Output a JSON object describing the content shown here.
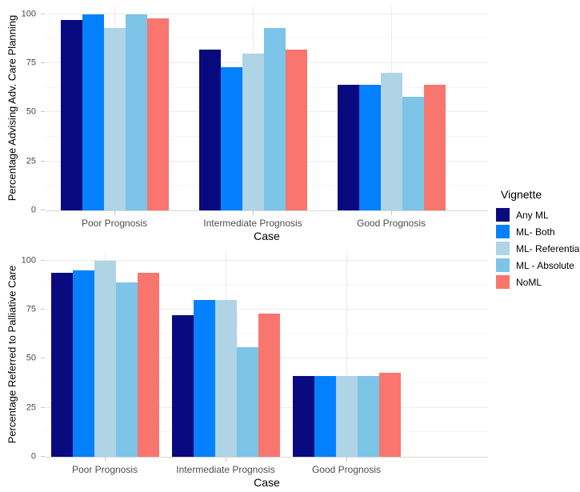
{
  "legend": {
    "title": "Vignette",
    "position": "right-center"
  },
  "colors": {
    "any_ml": "#0A0A80",
    "ml_both": "#0580FE",
    "ml_referential": "#AED4E6",
    "ml_absolute": "#7CC4E8",
    "noml": "#F8766D",
    "grid_major": "#EBEBEB",
    "grid_minor": "#F5F5F5",
    "axis_line": "#D8D8D8"
  },
  "chart_data": [
    {
      "type": "bar",
      "title": "",
      "xlabel": "Case",
      "ylabel": "Percentage Advising Adv. Care Planning",
      "categories": [
        "Poor Prognosis",
        "Intermediate Prognosis",
        "Good Prognosis"
      ],
      "series": [
        {
          "name": "Any ML",
          "color": "#0A0A80",
          "values": [
            97,
            82,
            64
          ]
        },
        {
          "name": "ML- Both",
          "color": "#0580FE",
          "values": [
            100,
            73,
            64
          ]
        },
        {
          "name": "ML- Referential",
          "color": "#AED4E6",
          "values": [
            93,
            80,
            70
          ]
        },
        {
          "name": "ML - Absolute",
          "color": "#7CC4E8",
          "values": [
            100,
            93,
            58
          ]
        },
        {
          "name": "NoML",
          "color": "#F8766D",
          "values": [
            98,
            82,
            64
          ]
        }
      ],
      "ylim": [
        0,
        100
      ],
      "yticks": [
        0,
        25,
        50,
        75,
        100
      ],
      "yticks_minor": [
        12.5,
        37.5,
        62.5,
        87.5
      ],
      "grid": "horizontal major+minor, vertical line at each category center",
      "legend_position": "right"
    },
    {
      "type": "bar",
      "title": "",
      "xlabel": "Case",
      "ylabel": "Percentage Referred to Palliative Care",
      "categories": [
        "Poor Prognosis",
        "Intermediate Prognosis",
        "Good Prognosis"
      ],
      "series": [
        {
          "name": "Any ML",
          "color": "#0A0A80",
          "values": [
            94,
            72,
            41
          ]
        },
        {
          "name": "ML- Both",
          "color": "#0580FE",
          "values": [
            95,
            80,
            41
          ]
        },
        {
          "name": "ML- Referential",
          "color": "#AED4E6",
          "values": [
            100,
            80,
            41
          ]
        },
        {
          "name": "ML - Absolute",
          "color": "#7CC4E8",
          "values": [
            89,
            56,
            41
          ]
        },
        {
          "name": "NoML",
          "color": "#F8766D",
          "values": [
            94,
            73,
            43
          ]
        }
      ],
      "ylim": [
        0,
        100
      ],
      "yticks": [
        0,
        25,
        50,
        75,
        100
      ],
      "yticks_minor": [
        12.5,
        37.5,
        62.5,
        87.5
      ],
      "grid": "horizontal major+minor, vertical line at each category center",
      "legend_position": "right"
    }
  ]
}
